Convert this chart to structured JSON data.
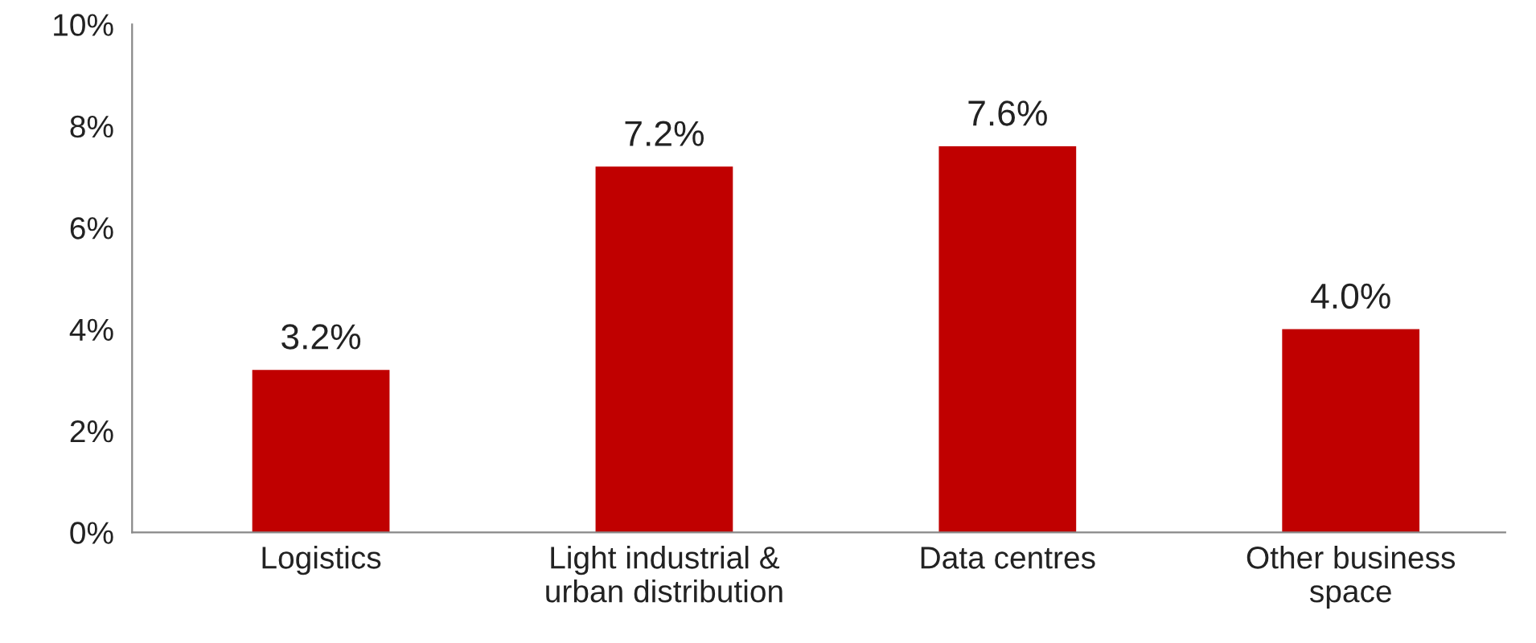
{
  "chart_data": {
    "type": "bar",
    "categories": [
      "Logistics",
      "Light industrial &\nurban distribution",
      "Data centres",
      "Other business\nspace"
    ],
    "values": [
      3.2,
      7.2,
      7.6,
      4.0
    ],
    "value_labels": [
      "3.2%",
      "7.2%",
      "7.6%",
      "4.0%"
    ],
    "color": "#c00000",
    "ylim": [
      0,
      10
    ],
    "yticks": [
      {
        "value": 0,
        "label": "0%"
      },
      {
        "value": 2,
        "label": "2%"
      },
      {
        "value": 4,
        "label": "4%"
      },
      {
        "value": 6,
        "label": "6%"
      },
      {
        "value": 8,
        "label": "8%"
      },
      {
        "value": 10,
        "label": "10%"
      }
    ],
    "grid": false,
    "legend": false
  }
}
